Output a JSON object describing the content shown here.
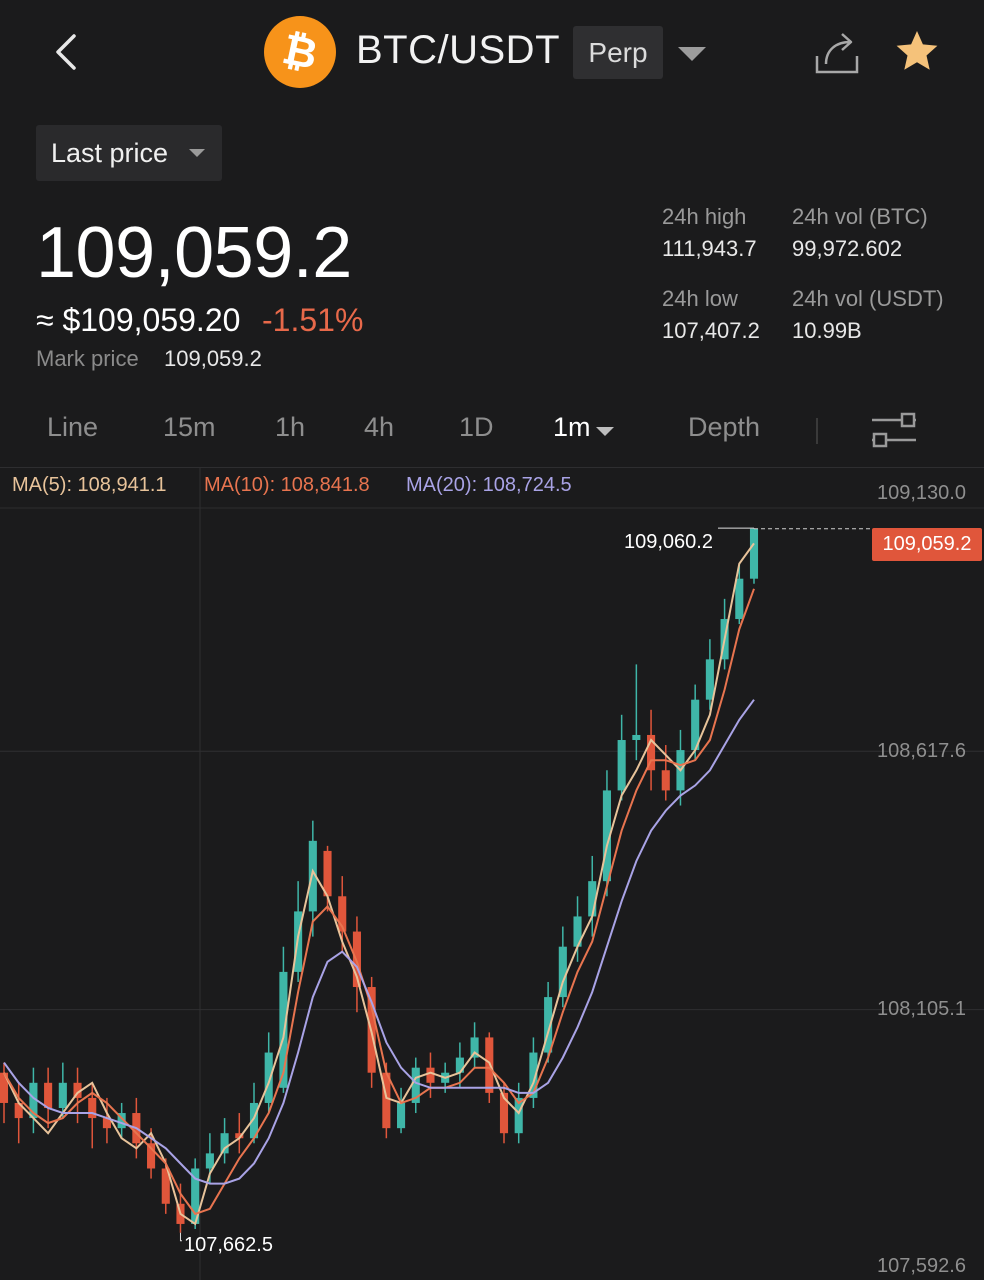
{
  "header": {
    "pair": "BTC/USDT",
    "contract_type": "Perp",
    "coin_color": "#f7931a",
    "favorite_color": "#f5c27a"
  },
  "price_type": {
    "label": "Last price"
  },
  "ticker": {
    "last_price": "109,059.2",
    "usd_price": "≈ $109,059.20",
    "change_pct": "-1.51%",
    "mark_price_label": "Mark price",
    "mark_price": "109,059.2"
  },
  "stats": {
    "high_label": "24h high",
    "high_value": "111,943.7",
    "low_label": "24h low",
    "low_value": "107,407.2",
    "vol_btc_label": "24h vol (BTC)",
    "vol_btc_value": "99,972.602",
    "vol_usdt_label": "24h vol (USDT)",
    "vol_usdt_value": "10.99B"
  },
  "tabs": [
    {
      "label": "Line",
      "active": false
    },
    {
      "label": "15m",
      "active": false
    },
    {
      "label": "1h",
      "active": false
    },
    {
      "label": "4h",
      "active": false
    },
    {
      "label": "1D",
      "active": false
    },
    {
      "label": "1m",
      "active": true
    },
    {
      "label": "Depth",
      "active": false
    }
  ],
  "moving_averages": {
    "ma5": "MA(5): 108,941.1",
    "ma10": "MA(10): 108,841.8",
    "ma20": "MA(20): 108,724.5"
  },
  "chart_data": {
    "type": "candlestick",
    "interval": "1m",
    "y_axis_ticks": [
      "109,130.0",
      "108,617.6",
      "108,105.1",
      "107,592.6"
    ],
    "ylim": [
      107592.6,
      109130.0
    ],
    "current_price": "109,059.2",
    "visible_high": "109,060.2",
    "visible_low": "107,662.5",
    "colors": {
      "up": "#3fb6a8",
      "down": "#e0563b",
      "ma5": "#e8c39a",
      "ma10": "#e8744f",
      "ma20": "#a9a3e6"
    },
    "series": [
      {
        "name": "MA(5)",
        "values": [
          107980,
          107920,
          107890,
          107860,
          107900,
          107940,
          107960,
          107900,
          107850,
          107830,
          107860,
          107800,
          107700,
          107680,
          107780,
          107830,
          107850,
          107890,
          107960,
          108050,
          108250,
          108380,
          108330,
          108240,
          108170,
          108060,
          107930,
          107920,
          107970,
          107980,
          107970,
          107980,
          108020,
          108000,
          107930,
          107900,
          107960,
          108060,
          108160,
          108230,
          108290,
          108430,
          108530,
          108580,
          108640,
          108610,
          108580,
          108620,
          108690,
          108840,
          108990,
          109030
        ]
      },
      {
        "name": "MA(10)",
        "values": [
          107980,
          107930,
          107900,
          107880,
          107890,
          107920,
          107940,
          107920,
          107890,
          107860,
          107830,
          107800,
          107740,
          107700,
          107710,
          107760,
          107810,
          107850,
          107900,
          107980,
          108140,
          108280,
          108310,
          108270,
          108200,
          108110,
          107980,
          107920,
          107930,
          107950,
          107950,
          107960,
          107990,
          107990,
          107960,
          107920,
          107940,
          108010,
          108100,
          108180,
          108240,
          108350,
          108460,
          108540,
          108600,
          108600,
          108590,
          108600,
          108640,
          108740,
          108860,
          108940
        ]
      },
      {
        "name": "MA(20)",
        "values": [
          108000,
          107960,
          107930,
          107910,
          107900,
          107900,
          107900,
          107890,
          107880,
          107870,
          107850,
          107830,
          107800,
          107770,
          107760,
          107760,
          107770,
          107800,
          107850,
          107920,
          108020,
          108130,
          108200,
          108220,
          108190,
          108120,
          108040,
          107990,
          107960,
          107950,
          107950,
          107950,
          107950,
          107950,
          107950,
          107940,
          107940,
          107960,
          108010,
          108070,
          108140,
          108230,
          108320,
          108400,
          108460,
          108500,
          108530,
          108550,
          108580,
          108630,
          108680,
          108720
        ]
      }
    ],
    "candles": [
      {
        "o": 107980,
        "c": 107920,
        "h": 108000,
        "l": 107880
      },
      {
        "o": 107920,
        "c": 107890,
        "h": 107960,
        "l": 107840
      },
      {
        "o": 107890,
        "c": 107960,
        "h": 107990,
        "l": 107860
      },
      {
        "o": 107960,
        "c": 107910,
        "h": 107990,
        "l": 107870
      },
      {
        "o": 107910,
        "c": 107960,
        "h": 108000,
        "l": 107890
      },
      {
        "o": 107960,
        "c": 107930,
        "h": 107990,
        "l": 107880
      },
      {
        "o": 107930,
        "c": 107890,
        "h": 107960,
        "l": 107830
      },
      {
        "o": 107890,
        "c": 107870,
        "h": 107930,
        "l": 107840
      },
      {
        "o": 107870,
        "c": 107900,
        "h": 107920,
        "l": 107850
      },
      {
        "o": 107900,
        "c": 107840,
        "h": 107930,
        "l": 107810
      },
      {
        "o": 107840,
        "c": 107790,
        "h": 107870,
        "l": 107770
      },
      {
        "o": 107790,
        "c": 107720,
        "h": 107810,
        "l": 107700
      },
      {
        "o": 107720,
        "c": 107680,
        "h": 107760,
        "l": 107662.5
      },
      {
        "o": 107680,
        "c": 107790,
        "h": 107810,
        "l": 107670
      },
      {
        "o": 107790,
        "c": 107820,
        "h": 107860,
        "l": 107760
      },
      {
        "o": 107820,
        "c": 107860,
        "h": 107890,
        "l": 107800
      },
      {
        "o": 107860,
        "c": 107850,
        "h": 107900,
        "l": 107820
      },
      {
        "o": 107850,
        "c": 107920,
        "h": 107960,
        "l": 107840
      },
      {
        "o": 107920,
        "c": 108020,
        "h": 108060,
        "l": 107900
      },
      {
        "o": 107950,
        "c": 108180,
        "h": 108230,
        "l": 107940
      },
      {
        "o": 108180,
        "c": 108300,
        "h": 108360,
        "l": 108160
      },
      {
        "o": 108300,
        "c": 108440,
        "h": 108480,
        "l": 108250
      },
      {
        "o": 108420,
        "c": 108330,
        "h": 108430,
        "l": 108300
      },
      {
        "o": 108330,
        "c": 108260,
        "h": 108370,
        "l": 108220
      },
      {
        "o": 108260,
        "c": 108150,
        "h": 108290,
        "l": 108100
      },
      {
        "o": 108150,
        "c": 107980,
        "h": 108170,
        "l": 107950
      },
      {
        "o": 107980,
        "c": 107870,
        "h": 108000,
        "l": 107850
      },
      {
        "o": 107870,
        "c": 107920,
        "h": 107950,
        "l": 107860
      },
      {
        "o": 107920,
        "c": 107990,
        "h": 108010,
        "l": 107900
      },
      {
        "o": 107990,
        "c": 107960,
        "h": 108020,
        "l": 107930
      },
      {
        "o": 107960,
        "c": 107980,
        "h": 108000,
        "l": 107940
      },
      {
        "o": 107980,
        "c": 108010,
        "h": 108040,
        "l": 107950
      },
      {
        "o": 108010,
        "c": 108050,
        "h": 108080,
        "l": 107990
      },
      {
        "o": 108050,
        "c": 107940,
        "h": 108060,
        "l": 107920
      },
      {
        "o": 107940,
        "c": 107860,
        "h": 107960,
        "l": 107840
      },
      {
        "o": 107860,
        "c": 107930,
        "h": 107960,
        "l": 107840
      },
      {
        "o": 107930,
        "c": 108020,
        "h": 108050,
        "l": 107910
      },
      {
        "o": 108020,
        "c": 108130,
        "h": 108160,
        "l": 108000
      },
      {
        "o": 108130,
        "c": 108230,
        "h": 108270,
        "l": 108110
      },
      {
        "o": 108230,
        "c": 108290,
        "h": 108330,
        "l": 108200
      },
      {
        "o": 108290,
        "c": 108360,
        "h": 108410,
        "l": 108250
      },
      {
        "o": 108360,
        "c": 108540,
        "h": 108580,
        "l": 108330
      },
      {
        "o": 108540,
        "c": 108640,
        "h": 108690,
        "l": 108520
      },
      {
        "o": 108640,
        "c": 108650,
        "h": 108790,
        "l": 108600
      },
      {
        "o": 108650,
        "c": 108580,
        "h": 108700,
        "l": 108540
      },
      {
        "o": 108580,
        "c": 108540,
        "h": 108630,
        "l": 108520
      },
      {
        "o": 108540,
        "c": 108620,
        "h": 108660,
        "l": 108510
      },
      {
        "o": 108620,
        "c": 108720,
        "h": 108750,
        "l": 108600
      },
      {
        "o": 108720,
        "c": 108800,
        "h": 108840,
        "l": 108700
      },
      {
        "o": 108800,
        "c": 108880,
        "h": 108920,
        "l": 108780
      },
      {
        "o": 108880,
        "c": 108960,
        "h": 108990,
        "l": 108870
      },
      {
        "o": 108960,
        "c": 109059.2,
        "h": 109060.2,
        "l": 108950
      }
    ]
  }
}
